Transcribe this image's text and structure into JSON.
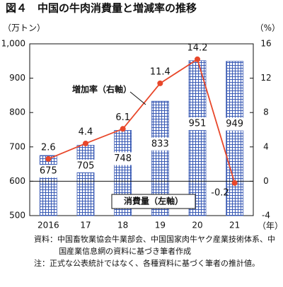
{
  "chart_data": {
    "type": "bar_line",
    "title": "図４　中国の牛肉消費量と増減率の推移",
    "y_label": "（万トン）",
    "y2_label": "（%）",
    "x_label": "（年）",
    "categories": [
      "2016",
      "17",
      "18",
      "19",
      "20",
      "21"
    ],
    "series": [
      {
        "name": "消費量（左軸）",
        "type": "bar",
        "color": "#3a5bb5",
        "values": [
          675,
          705,
          748,
          833,
          951,
          949
        ]
      },
      {
        "name": "増加率（右軸）",
        "type": "line",
        "axis": "y2",
        "color": "#e8472a",
        "values": [
          2.6,
          4.4,
          6.1,
          11.4,
          14.2,
          -0.2
        ]
      }
    ],
    "ylim": [
      500,
      1000
    ],
    "yticks": [
      500,
      600,
      700,
      800,
      900,
      {
        "value": 1000,
        "label": "1,000"
      }
    ],
    "y2lim": [
      -4,
      16
    ],
    "y2ticks": [
      -4,
      0,
      4,
      8,
      12,
      16
    ],
    "notes": [
      "資料：中国畜牧業協会牛業部会、中国国家肉牛ヤク産業技術体系、中国産業信息網の資料に基づき筆者作成",
      "注：正式な公表統計ではなく、各種資料に基づく筆者の推計値。"
    ]
  }
}
